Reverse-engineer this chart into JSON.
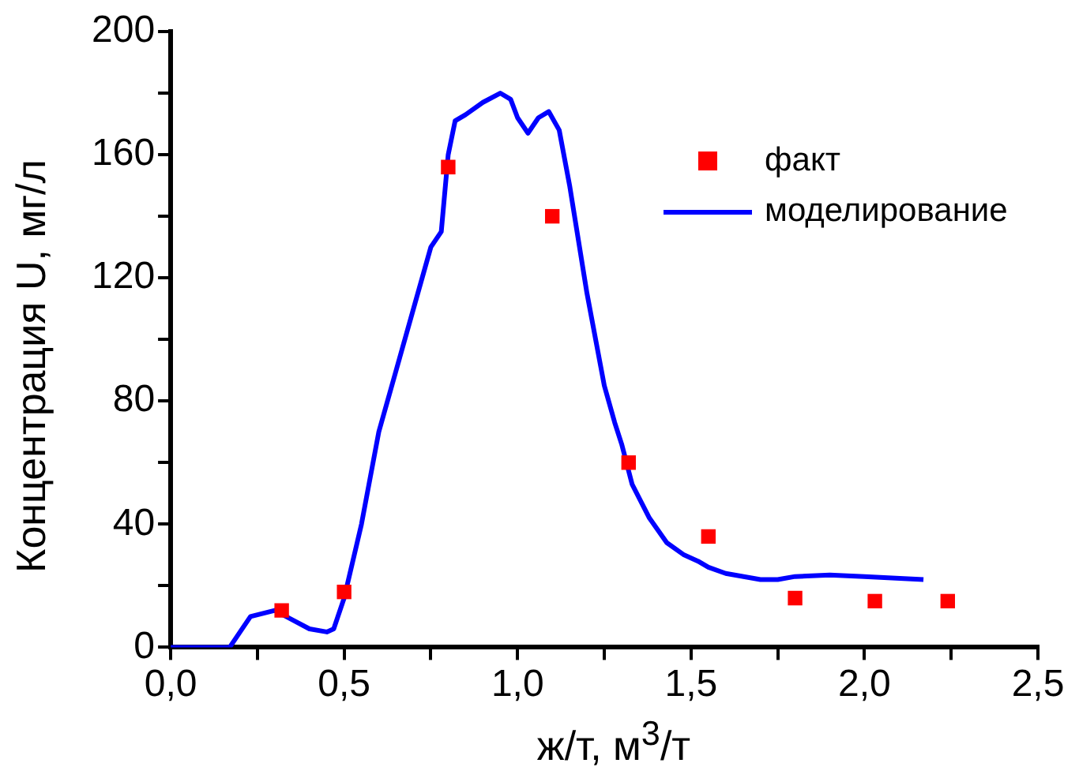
{
  "chart_data": {
    "type": "scatter",
    "xlabel": "ж/т, м$^{3}$/т",
    "ylabel": "Концентрация U, мг/л",
    "xlim": [
      0,
      2.5
    ],
    "xticks": [
      {
        "value": 0,
        "label": "0,0"
      },
      {
        "value": 0.25,
        "label": null
      },
      {
        "value": 0.5,
        "label": "0,5"
      },
      {
        "value": 0.75,
        "label": null
      },
      {
        "value": 1,
        "label": "1,0"
      },
      {
        "value": 1.25,
        "label": null
      },
      {
        "value": 1.5,
        "label": "1,5"
      },
      {
        "value": 1.75,
        "label": null
      },
      {
        "value": 2,
        "label": "2,0"
      },
      {
        "value": 2.25,
        "label": null
      },
      {
        "value": 2.5,
        "label": "2,5"
      }
    ],
    "ylim": [
      0,
      200
    ],
    "yticks": [
      0,
      {
        "value": 20,
        "label": null
      },
      40,
      {
        "value": 60,
        "label": null
      },
      80,
      {
        "value": 100,
        "label": null
      },
      120,
      {
        "value": 140,
        "label": null
      },
      160,
      {
        "value": 180,
        "label": null
      },
      200
    ],
    "grid": false,
    "legend": "top right",
    "series": [
      {
        "name": "факт",
        "marker": "square",
        "color": "#ff0000",
        "x": [
          0.32,
          0.5,
          0.8,
          1.1,
          1.32,
          1.55,
          1.8,
          2.03,
          2.24
        ],
        "values": [
          12,
          18,
          156,
          140,
          60,
          36,
          16,
          15,
          15
        ]
      },
      {
        "name": "моделирование",
        "type": "line",
        "marker": "none",
        "line_style": "solid",
        "color": "#0000ff",
        "x": [
          0,
          0.17,
          0.2,
          0.23,
          0.3,
          0.35,
          0.4,
          0.45,
          0.47,
          0.5,
          0.55,
          0.6,
          0.65,
          0.7,
          0.75,
          0.78,
          0.8,
          0.82,
          0.85,
          0.9,
          0.95,
          0.98,
          1.0,
          1.03,
          1.06,
          1.09,
          1.12,
          1.15,
          1.2,
          1.25,
          1.28,
          1.3,
          1.33,
          1.38,
          1.43,
          1.48,
          1.52,
          1.55,
          1.6,
          1.7,
          1.75,
          1.8,
          1.9,
          2.0,
          2.17
        ],
        "values": [
          0,
          0,
          5,
          10,
          12,
          9,
          6,
          5,
          6,
          16,
          40,
          70,
          90,
          110,
          130,
          135,
          160,
          171,
          173,
          177,
          180,
          178,
          172,
          167,
          172,
          174,
          168,
          150,
          115,
          85,
          73,
          66,
          53,
          42,
          34,
          30,
          28,
          26,
          24,
          22,
          22,
          23,
          23.5,
          23,
          22
        ]
      }
    ]
  }
}
